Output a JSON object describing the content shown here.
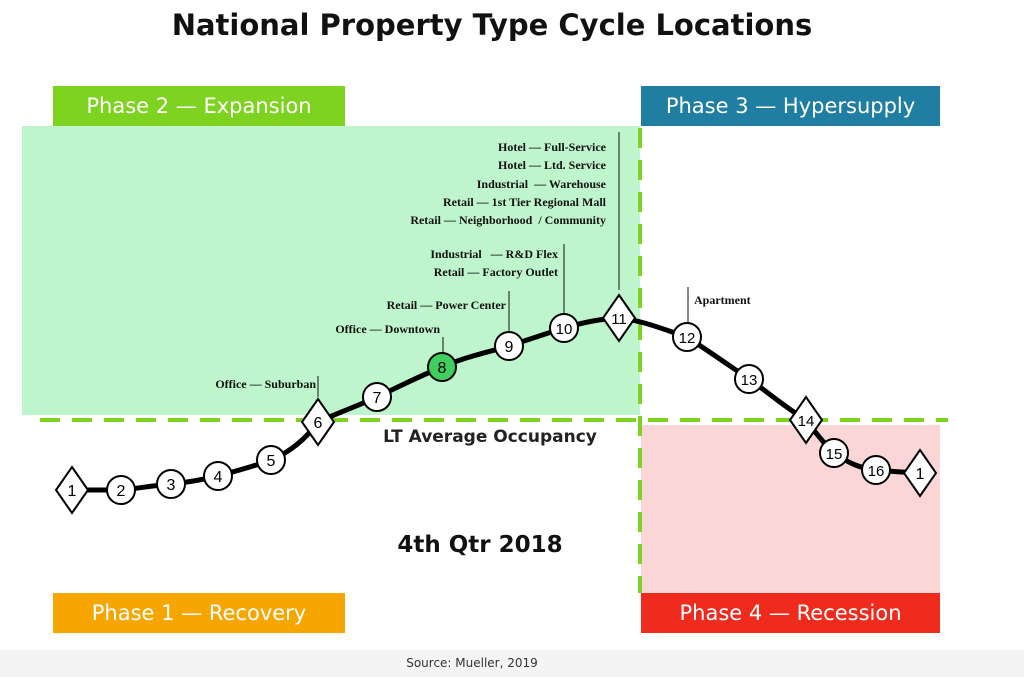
{
  "title": "National Property Type Cycle Locations",
  "phases": {
    "phase1": "Phase 1 — Recovery",
    "phase2": "Phase 2 — Expansion",
    "phase3": "Phase 3 — Hypersupply",
    "phase4": "Phase 4 — Recession"
  },
  "lt_average_label": "LT Average Occupancy",
  "quarter": "4th Qtr 2018",
  "source": "Source: Mueller, 2019",
  "colors": {
    "expansion_fill": "#bff5cc",
    "recession_fill": "#fbd6d6",
    "dashed_line": "#7ed321",
    "highlight_point": "#3ecf5e",
    "phase1": "#f7a600",
    "phase2": "#7ed321",
    "phase3": "#1f7ea1",
    "phase4": "#ee2b1c"
  },
  "points": [
    {
      "label": "1",
      "shape": "diamond"
    },
    {
      "label": "2",
      "shape": "circle"
    },
    {
      "label": "3",
      "shape": "circle"
    },
    {
      "label": "4",
      "shape": "circle"
    },
    {
      "label": "5",
      "shape": "circle"
    },
    {
      "label": "6",
      "shape": "diamond"
    },
    {
      "label": "7",
      "shape": "circle"
    },
    {
      "label": "8",
      "shape": "circle",
      "highlight": true
    },
    {
      "label": "9",
      "shape": "circle"
    },
    {
      "label": "10",
      "shape": "circle"
    },
    {
      "label": "11",
      "shape": "diamond"
    },
    {
      "label": "12",
      "shape": "circle"
    },
    {
      "label": "13",
      "shape": "circle"
    },
    {
      "label": "14",
      "shape": "diamond"
    },
    {
      "label": "15",
      "shape": "circle"
    },
    {
      "label": "16",
      "shape": "circle"
    },
    {
      "label": "1",
      "shape": "diamond"
    }
  ],
  "annotations": {
    "suburban": "Office — Suburban",
    "downtown": "Office — Downtown",
    "power_center": "Retail — Power Center",
    "flex": "Industrial   — R&D Flex",
    "factory": "Retail — Factory Outlet",
    "hotel_full": "Hotel — Full-Service",
    "hotel_ltd": "Hotel — Ltd. Service",
    "warehouse": "Industrial  — Warehouse",
    "mall": "Retail — 1st Tier Regional Mall",
    "neighborhood": "Retail — Neighborhood  / Community",
    "apartment": "Apartment"
  }
}
